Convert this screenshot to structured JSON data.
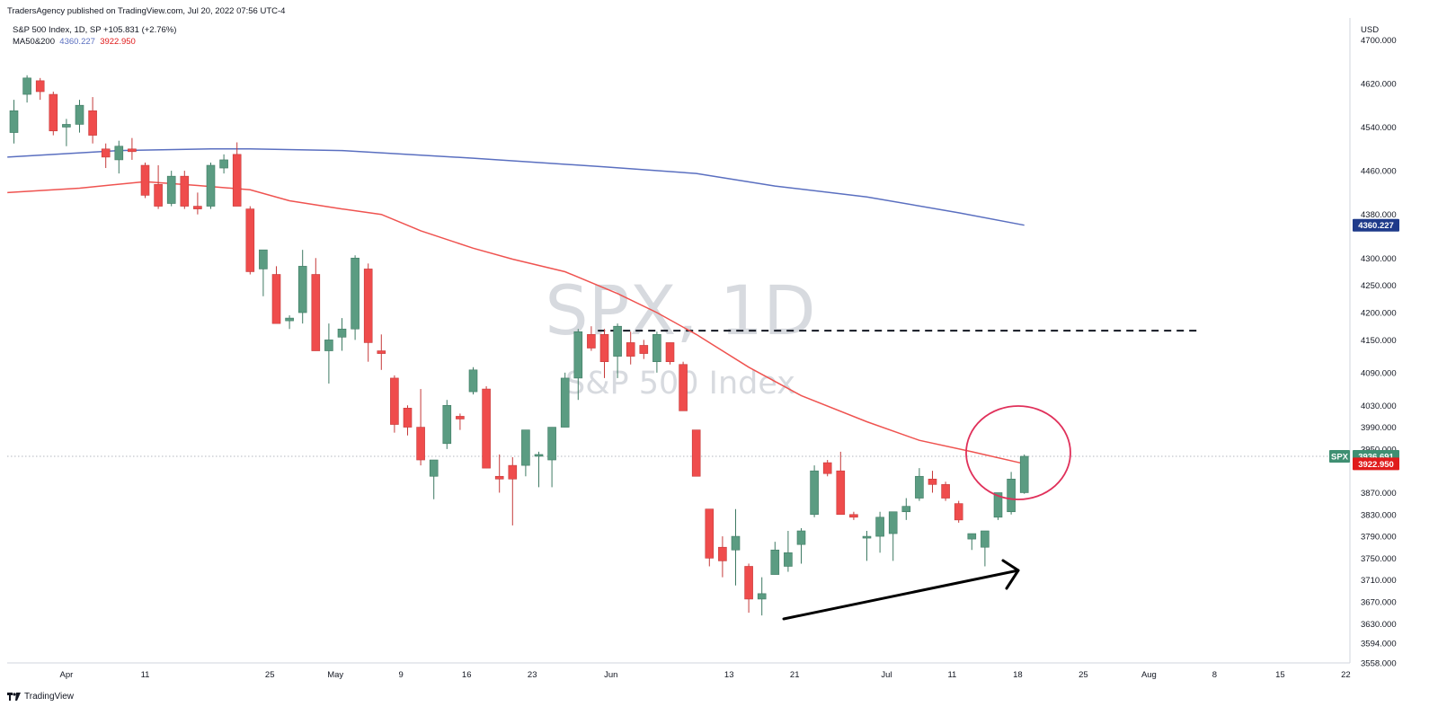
{
  "header": {
    "publisher": "TradersAgency published on TradingView.com, Jul 20, 2022 07:56 UTC-4",
    "symbol_line": "S&P 500 Index, 1D, SP  +105.831 (+2.76%)",
    "ma_label": "MA50&200",
    "ma200_value": "4360.227",
    "ma50_value": "3922.950"
  },
  "watermark": {
    "symbol": "SPX, 1D",
    "name": "S&P 500 Index"
  },
  "footer": {
    "brand": "TradingView"
  },
  "colors": {
    "up": "#5b9c82",
    "down": "#ef4c4c",
    "ma200": "#5a6fc0",
    "ma50": "#ef5350",
    "ma200_badge": "#1e3a8a",
    "ma50_badge": "#e01b1b",
    "spx_badge": "#3f8f72",
    "circle": "#e0305a"
  },
  "badges": {
    "spx_label": "SPX",
    "spx_price": "3936.691",
    "ma200": "4360.227",
    "ma50": "3922.950"
  },
  "chart_data": {
    "type": "candlestick",
    "currency": "USD",
    "ylim": [
      3558,
      4740
    ],
    "y_ticks": [
      {
        "v": 4700,
        "label": "4700.000"
      },
      {
        "v": 4620,
        "label": "4620.000"
      },
      {
        "v": 4540,
        "label": "4540.000"
      },
      {
        "v": 4460,
        "label": "4460.000"
      },
      {
        "v": 4380,
        "label": "4380.000"
      },
      {
        "v": 4300,
        "label": "4300.000"
      },
      {
        "v": 4250,
        "label": "4250.000"
      },
      {
        "v": 4200,
        "label": "4200.000"
      },
      {
        "v": 4150,
        "label": "4150.000"
      },
      {
        "v": 4090,
        "label": "4090.000"
      },
      {
        "v": 4030,
        "label": "4030.000"
      },
      {
        "v": 3990,
        "label": "3990.000"
      },
      {
        "v": 3950,
        "label": "3950.000"
      },
      {
        "v": 3870,
        "label": "3870.000"
      },
      {
        "v": 3830,
        "label": "3830.000"
      },
      {
        "v": 3790,
        "label": "3790.000"
      },
      {
        "v": 3750,
        "label": "3750.000"
      },
      {
        "v": 3710,
        "label": "3710.000"
      },
      {
        "v": 3670,
        "label": "3670.000"
      },
      {
        "v": 3630,
        "label": "3630.000"
      },
      {
        "v": 3594,
        "label": "3594.000"
      },
      {
        "v": 3558,
        "label": "3558.000"
      }
    ],
    "x_ticks": [
      {
        "i": 4,
        "label": "Apr"
      },
      {
        "i": 10,
        "label": "11"
      },
      {
        "i": 19.5,
        "label": "25"
      },
      {
        "i": 24.5,
        "label": "May"
      },
      {
        "i": 29.5,
        "label": "9"
      },
      {
        "i": 34.5,
        "label": "16"
      },
      {
        "i": 39.5,
        "label": "23"
      },
      {
        "i": 45.5,
        "label": "Jun"
      },
      {
        "i": 54.5,
        "label": "13"
      },
      {
        "i": 59.5,
        "label": "21"
      },
      {
        "i": 66.5,
        "label": "Jul"
      },
      {
        "i": 71.5,
        "label": "11"
      },
      {
        "i": 76.5,
        "label": "18"
      },
      {
        "i": 81.5,
        "label": "25"
      },
      {
        "i": 86.5,
        "label": "Aug"
      },
      {
        "i": 91.5,
        "label": "8"
      },
      {
        "i": 96.5,
        "label": "15"
      },
      {
        "i": 101.5,
        "label": "22"
      }
    ],
    "last_close": 3936.691,
    "resistance_level": 4167,
    "candles": [
      {
        "o": 4530,
        "h": 4590,
        "l": 4510,
        "c": 4570
      },
      {
        "o": 4600,
        "h": 4635,
        "l": 4585,
        "c": 4630
      },
      {
        "o": 4625,
        "h": 4630,
        "l": 4590,
        "c": 4605
      },
      {
        "o": 4600,
        "h": 4605,
        "l": 4525,
        "c": 4533
      },
      {
        "o": 4540,
        "h": 4555,
        "l": 4505,
        "c": 4545
      },
      {
        "o": 4545,
        "h": 4590,
        "l": 4530,
        "c": 4580
      },
      {
        "o": 4570,
        "h": 4595,
        "l": 4510,
        "c": 4525
      },
      {
        "o": 4500,
        "h": 4510,
        "l": 4465,
        "c": 4485
      },
      {
        "o": 4480,
        "h": 4515,
        "l": 4455,
        "c": 4505
      },
      {
        "o": 4500,
        "h": 4520,
        "l": 4480,
        "c": 4495
      },
      {
        "o": 4470,
        "h": 4475,
        "l": 4410,
        "c": 4415
      },
      {
        "o": 4435,
        "h": 4470,
        "l": 4390,
        "c": 4395
      },
      {
        "o": 4400,
        "h": 4460,
        "l": 4395,
        "c": 4450
      },
      {
        "o": 4450,
        "h": 4460,
        "l": 4390,
        "c": 4395
      },
      {
        "o": 4395,
        "h": 4420,
        "l": 4380,
        "c": 4390
      },
      {
        "o": 4395,
        "h": 4475,
        "l": 4390,
        "c": 4470
      },
      {
        "o": 4465,
        "h": 4490,
        "l": 4455,
        "c": 4480
      },
      {
        "o": 4490,
        "h": 4512,
        "l": 4400,
        "c": 4395
      },
      {
        "o": 4390,
        "h": 4395,
        "l": 4270,
        "c": 4275
      },
      {
        "o": 4280,
        "h": 4310,
        "l": 4230,
        "c": 4315
      },
      {
        "o": 4270,
        "h": 4285,
        "l": 4180,
        "c": 4180
      },
      {
        "o": 4185,
        "h": 4195,
        "l": 4170,
        "c": 4190
      },
      {
        "o": 4200,
        "h": 4315,
        "l": 4180,
        "c": 4285
      },
      {
        "o": 4270,
        "h": 4300,
        "l": 4130,
        "c": 4130
      },
      {
        "o": 4130,
        "h": 4180,
        "l": 4070,
        "c": 4150
      },
      {
        "o": 4155,
        "h": 4190,
        "l": 4130,
        "c": 4170
      },
      {
        "o": 4170,
        "h": 4305,
        "l": 4150,
        "c": 4300
      },
      {
        "o": 4280,
        "h": 4290,
        "l": 4110,
        "c": 4145
      },
      {
        "o": 4130,
        "h": 4160,
        "l": 4095,
        "c": 4125
      },
      {
        "o": 4080,
        "h": 4085,
        "l": 3980,
        "c": 3995
      },
      {
        "o": 4025,
        "h": 4030,
        "l": 3975,
        "c": 3990
      },
      {
        "o": 3990,
        "h": 4060,
        "l": 3920,
        "c": 3930
      },
      {
        "o": 3900,
        "h": 3930,
        "l": 3858,
        "c": 3930
      },
      {
        "o": 3960,
        "h": 4040,
        "l": 3950,
        "c": 4030
      },
      {
        "o": 4010,
        "h": 4015,
        "l": 3985,
        "c": 4005
      },
      {
        "o": 4055,
        "h": 4100,
        "l": 4050,
        "c": 4095
      },
      {
        "o": 4060,
        "h": 4065,
        "l": 3915,
        "c": 3915
      },
      {
        "o": 3900,
        "h": 3940,
        "l": 3870,
        "c": 3895
      },
      {
        "o": 3920,
        "h": 3935,
        "l": 3810,
        "c": 3895
      },
      {
        "o": 3920,
        "h": 3985,
        "l": 3900,
        "c": 3985
      },
      {
        "o": 3940,
        "h": 3945,
        "l": 3880,
        "c": 3940
      },
      {
        "o": 3930,
        "h": 3990,
        "l": 3880,
        "c": 3990
      },
      {
        "o": 3990,
        "h": 4090,
        "l": 3990,
        "c": 4080
      },
      {
        "o": 4080,
        "h": 4170,
        "l": 4040,
        "c": 4165
      },
      {
        "o": 4160,
        "h": 4175,
        "l": 4130,
        "c": 4135
      },
      {
        "o": 4160,
        "h": 4170,
        "l": 4080,
        "c": 4110
      },
      {
        "o": 4120,
        "h": 4180,
        "l": 4080,
        "c": 4175
      },
      {
        "o": 4145,
        "h": 4165,
        "l": 4105,
        "c": 4120
      },
      {
        "o": 4140,
        "h": 4150,
        "l": 4115,
        "c": 4125
      },
      {
        "o": 4110,
        "h": 4165,
        "l": 4090,
        "c": 4160
      },
      {
        "o": 4145,
        "h": 4145,
        "l": 4105,
        "c": 4110
      },
      {
        "o": 4105,
        "h": 4110,
        "l": 4020,
        "c": 4020
      },
      {
        "o": 3985,
        "h": 3985,
        "l": 3900,
        "c": 3900
      },
      {
        "o": 3840,
        "h": 3840,
        "l": 3735,
        "c": 3750
      },
      {
        "o": 3770,
        "h": 3790,
        "l": 3715,
        "c": 3745
      },
      {
        "o": 3765,
        "h": 3840,
        "l": 3700,
        "c": 3790
      },
      {
        "o": 3735,
        "h": 3740,
        "l": 3650,
        "c": 3675
      },
      {
        "o": 3675,
        "h": 3715,
        "l": 3645,
        "c": 3685
      },
      {
        "o": 3720,
        "h": 3780,
        "l": 3720,
        "c": 3765
      },
      {
        "o": 3735,
        "h": 3800,
        "l": 3725,
        "c": 3760
      },
      {
        "o": 3775,
        "h": 3805,
        "l": 3740,
        "c": 3800
      },
      {
        "o": 3830,
        "h": 3920,
        "l": 3825,
        "c": 3910
      },
      {
        "o": 3925,
        "h": 3930,
        "l": 3900,
        "c": 3905
      },
      {
        "o": 3910,
        "h": 3945,
        "l": 3830,
        "c": 3830
      },
      {
        "o": 3830,
        "h": 3835,
        "l": 3820,
        "c": 3825
      },
      {
        "o": 3790,
        "h": 3800,
        "l": 3745,
        "c": 3790
      },
      {
        "o": 3790,
        "h": 3835,
        "l": 3760,
        "c": 3825
      },
      {
        "o": 3795,
        "h": 3830,
        "l": 3745,
        "c": 3835
      },
      {
        "o": 3835,
        "h": 3860,
        "l": 3820,
        "c": 3845
      },
      {
        "o": 3860,
        "h": 3915,
        "l": 3855,
        "c": 3900
      },
      {
        "o": 3895,
        "h": 3910,
        "l": 3870,
        "c": 3885
      },
      {
        "o": 3885,
        "h": 3890,
        "l": 3855,
        "c": 3860
      },
      {
        "o": 3850,
        "h": 3855,
        "l": 3815,
        "c": 3820
      },
      {
        "o": 3785,
        "h": 3795,
        "l": 3765,
        "c": 3795
      },
      {
        "o": 3770,
        "h": 3800,
        "l": 3735,
        "c": 3800
      },
      {
        "o": 3825,
        "h": 3870,
        "l": 3820,
        "c": 3870
      },
      {
        "o": 3835,
        "h": 3908,
        "l": 3830,
        "c": 3895
      },
      {
        "o": 3870,
        "h": 3940,
        "l": 3868,
        "c": 3936.691
      }
    ],
    "ma200": [
      {
        "i": -0.5,
        "v": 4485
      },
      {
        "i": 8,
        "v": 4497
      },
      {
        "i": 15,
        "v": 4500
      },
      {
        "i": 18,
        "v": 4500
      },
      {
        "i": 25,
        "v": 4497
      },
      {
        "i": 35,
        "v": 4483
      },
      {
        "i": 45,
        "v": 4467
      },
      {
        "i": 52,
        "v": 4455
      },
      {
        "i": 58,
        "v": 4432
      },
      {
        "i": 65,
        "v": 4412
      },
      {
        "i": 72,
        "v": 4383
      },
      {
        "i": 77,
        "v": 4360.227
      }
    ],
    "ma50": [
      {
        "i": -0.5,
        "v": 4420
      },
      {
        "i": 5,
        "v": 4428
      },
      {
        "i": 10,
        "v": 4440
      },
      {
        "i": 14,
        "v": 4433
      },
      {
        "i": 18,
        "v": 4425
      },
      {
        "i": 21,
        "v": 4405
      },
      {
        "i": 25,
        "v": 4390
      },
      {
        "i": 28,
        "v": 4380
      },
      {
        "i": 31,
        "v": 4350
      },
      {
        "i": 35,
        "v": 4318
      },
      {
        "i": 38,
        "v": 4298
      },
      {
        "i": 42,
        "v": 4275
      },
      {
        "i": 46,
        "v": 4235
      },
      {
        "i": 49,
        "v": 4200
      },
      {
        "i": 52,
        "v": 4160
      },
      {
        "i": 56,
        "v": 4100
      },
      {
        "i": 60,
        "v": 4048
      },
      {
        "i": 65,
        "v": 4000
      },
      {
        "i": 69,
        "v": 3966
      },
      {
        "i": 73,
        "v": 3945
      },
      {
        "i": 77,
        "v": 3922.95
      }
    ]
  }
}
